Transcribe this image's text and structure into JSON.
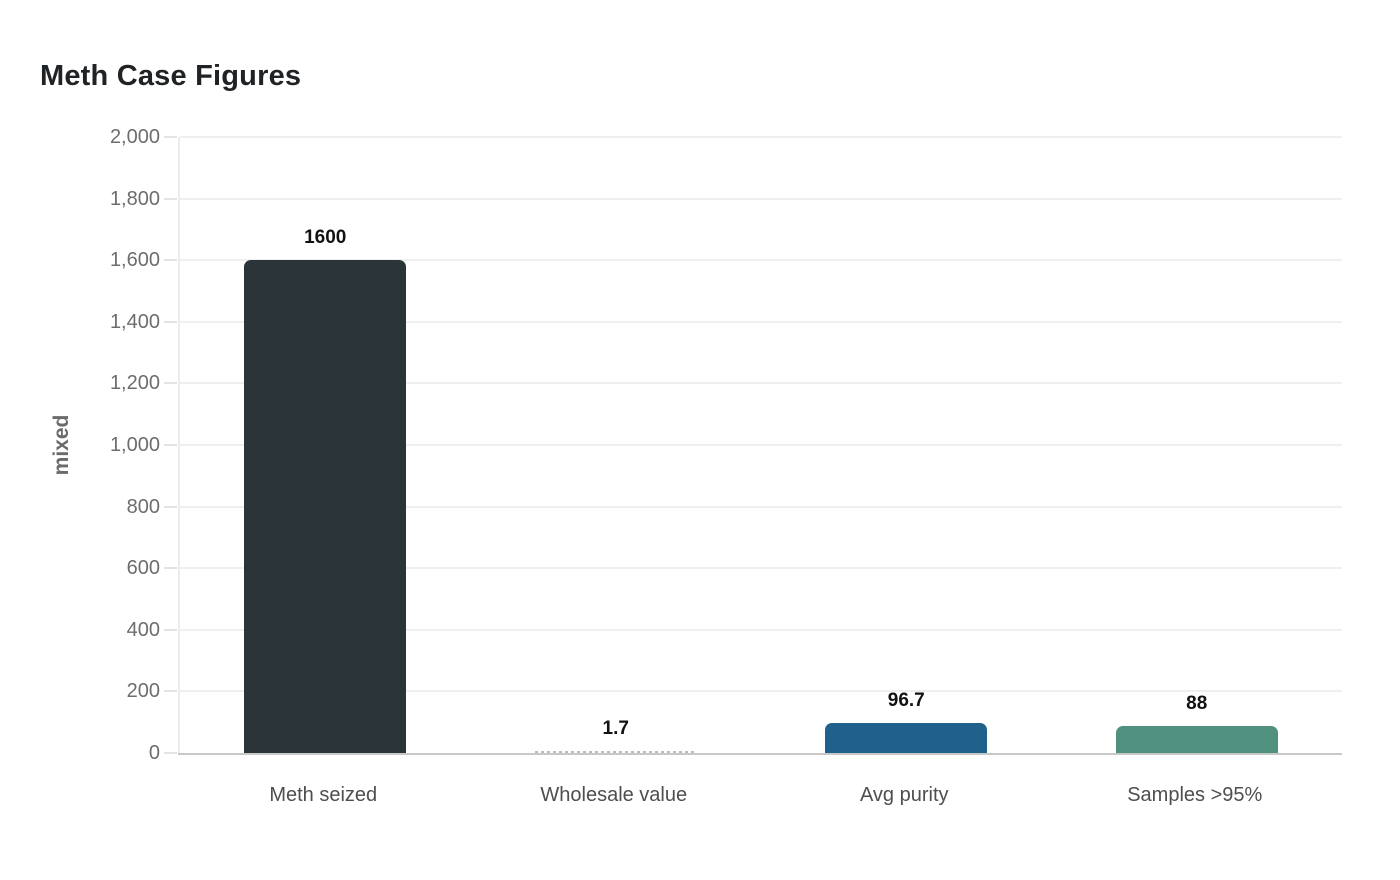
{
  "chart_data": {
    "type": "bar",
    "title": "Meth Case Figures",
    "categories": [
      "Meth seized",
      "Wholesale value",
      "Avg purity",
      "Samples >95%"
    ],
    "values": [
      1600,
      1.7,
      96.7,
      88
    ],
    "value_labels": [
      "1600",
      "1.7",
      "96.7",
      "88"
    ],
    "bar_colors": [
      "#2b3438",
      "#bdbdbd",
      "#1f618b",
      "#4f907e"
    ],
    "xlabel": "",
    "ylabel": "mixed",
    "ylim": [
      0,
      2000
    ],
    "yticks": [
      0,
      200,
      400,
      600,
      800,
      1000,
      1200,
      1400,
      1600,
      1800,
      2000
    ],
    "ytick_labels": [
      "0",
      "200",
      "400",
      "600",
      "800",
      "1,000",
      "1,200",
      "1,400",
      "1,600",
      "1,800",
      "2,000"
    ],
    "grid": true,
    "legend": false,
    "colors": {
      "background": "#ffffff",
      "title": "#202325",
      "tick_label": "#6d6d6d",
      "category_label": "#4e4e4e",
      "value_label": "#121212",
      "axis_title": "#6b6b6b",
      "gridline": "#efefef",
      "baseline": "#c8c8c8"
    }
  }
}
